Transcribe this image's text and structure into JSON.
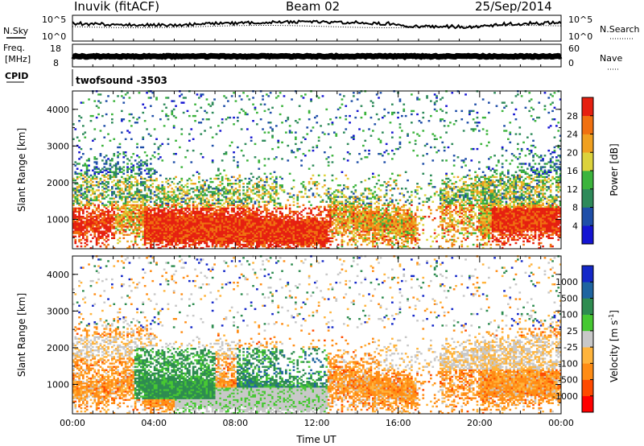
{
  "header": {
    "station": "Inuvik (fitACF)",
    "beam": "Beam 02",
    "date": "25/Sep/2014"
  },
  "top_panels": {
    "nsky_label": "N.Sky",
    "nsky_ticks": [
      "10^5",
      "10^0"
    ],
    "nsky_right_ticks": [
      "10^5",
      "10^0"
    ],
    "nsearch_label": "N.Search",
    "freq_label_1": "Freq.",
    "freq_label_2": "[MHz]",
    "freq_ticks": [
      "18",
      "8"
    ],
    "nave_ticks": [
      "60",
      "0"
    ],
    "nave_label": "Nave",
    "cpid_label": "CPID",
    "cpid_value": "twofsound -3503"
  },
  "colors": {
    "power_scale": [
      "#1414d2",
      "#1e4ea8",
      "#2e8a5a",
      "#3cb43c",
      "#dcd23c",
      "#f0a020",
      "#f07010",
      "#e62010"
    ],
    "velocity_scale": [
      "#ff0000",
      "#ff4a00",
      "#ff8c14",
      "#ffb43c",
      "#c8c8c8",
      "#46c832",
      "#2e8c50",
      "#1e64a0",
      "#1428c8"
    ]
  },
  "chart_data": [
    {
      "type": "heatmap",
      "name": "power",
      "ylabel": "Slant Range [km]",
      "ylim": [
        200,
        4500
      ],
      "yticks": [
        "1000",
        "2000",
        "3000",
        "4000"
      ],
      "xlim": [
        0,
        24
      ],
      "xticks": [
        "00:00",
        "04:00",
        "08:00",
        "12:00",
        "16:00",
        "20:00",
        "00:00"
      ],
      "colorbar_label": "Power [dB]",
      "colorbar_ticks": [
        "4",
        "8",
        "12",
        "16",
        "20",
        "24",
        "28"
      ],
      "colorbar_range": [
        0,
        32
      ]
    },
    {
      "type": "heatmap",
      "name": "velocity",
      "ylabel": "Slant Range [km]",
      "ylim": [
        200,
        4500
      ],
      "yticks": [
        "1000",
        "2000",
        "3000",
        "4000"
      ],
      "xlim": [
        0,
        24
      ],
      "xticks": [
        "00:00",
        "04:00",
        "08:00",
        "12:00",
        "16:00",
        "20:00",
        "00:00"
      ],
      "xlabel": "Time UT",
      "colorbar_label": "Velocity [m s",
      "colorbar_label_sup": "-1",
      "colorbar_ticks": [
        "1000",
        "500",
        "100",
        "25",
        "-25",
        "-100",
        "-500",
        "-1000"
      ]
    }
  ]
}
